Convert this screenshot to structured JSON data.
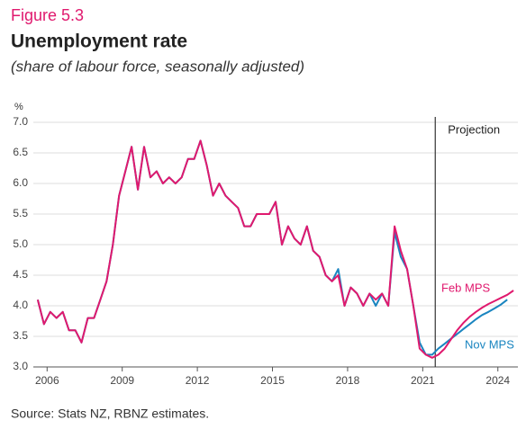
{
  "chart_data": {
    "type": "line",
    "figure_label": "Figure 5.3",
    "title": "Unemployment rate",
    "subtitle": "(share of labour force, seasonally adjusted)",
    "y_unit": "%",
    "source": "Source: Stats NZ, RBNZ estimates.",
    "projection": {
      "x": 2021.5,
      "label": "Projection"
    },
    "x": [
      2005.625,
      2005.875,
      2006.125,
      2006.375,
      2006.625,
      2006.875,
      2007.125,
      2007.375,
      2007.625,
      2007.875,
      2008.125,
      2008.375,
      2008.625,
      2008.875,
      2009.125,
      2009.375,
      2009.625,
      2009.875,
      2010.125,
      2010.375,
      2010.625,
      2010.875,
      2011.125,
      2011.375,
      2011.625,
      2011.875,
      2012.125,
      2012.375,
      2012.625,
      2012.875,
      2013.125,
      2013.375,
      2013.625,
      2013.875,
      2014.125,
      2014.375,
      2014.625,
      2014.875,
      2015.125,
      2015.375,
      2015.625,
      2015.875,
      2016.125,
      2016.375,
      2016.625,
      2016.875,
      2017.125,
      2017.375,
      2017.625,
      2017.875,
      2018.125,
      2018.375,
      2018.625,
      2018.875,
      2019.125,
      2019.375,
      2019.625,
      2019.875,
      2020.125,
      2020.375,
      2020.625,
      2020.875,
      2021.125,
      2021.375,
      2021.625,
      2021.875,
      2022.125,
      2022.375,
      2022.625,
      2022.875,
      2023.125,
      2023.375,
      2023.625,
      2023.875,
      2024.125,
      2024.375,
      2024.625
    ],
    "series": [
      {
        "name": "Nov MPS",
        "color": "#1a85c0",
        "values": [
          4.1,
          3.7,
          3.9,
          3.8,
          3.9,
          3.6,
          3.6,
          3.4,
          3.8,
          3.8,
          4.1,
          4.4,
          5.0,
          5.8,
          6.2,
          6.6,
          5.9,
          6.6,
          6.1,
          6.2,
          6.0,
          6.1,
          6.0,
          6.1,
          6.4,
          6.4,
          6.7,
          6.3,
          5.8,
          6.0,
          5.8,
          5.7,
          5.6,
          5.3,
          5.3,
          5.5,
          5.5,
          5.5,
          5.7,
          5.0,
          5.3,
          5.1,
          5.0,
          5.3,
          4.9,
          4.8,
          4.5,
          4.4,
          4.6,
          4.0,
          4.3,
          4.2,
          4.0,
          4.2,
          4.0,
          4.2,
          4.0,
          5.2,
          4.8,
          4.6,
          4.0,
          3.4,
          3.2,
          3.2,
          3.3,
          3.38,
          3.46,
          3.54,
          3.62,
          3.7,
          3.78,
          3.85,
          3.9,
          3.96,
          4.02,
          4.1,
          null
        ]
      },
      {
        "name": "Feb MPS",
        "color": "#e0196e",
        "values": [
          4.1,
          3.7,
          3.9,
          3.8,
          3.9,
          3.6,
          3.6,
          3.4,
          3.8,
          3.8,
          4.1,
          4.4,
          5.0,
          5.8,
          6.2,
          6.6,
          5.9,
          6.6,
          6.1,
          6.2,
          6.0,
          6.1,
          6.0,
          6.1,
          6.4,
          6.4,
          6.7,
          6.3,
          5.8,
          6.0,
          5.8,
          5.7,
          5.6,
          5.3,
          5.3,
          5.5,
          5.5,
          5.5,
          5.7,
          5.0,
          5.3,
          5.1,
          5.0,
          5.3,
          4.9,
          4.8,
          4.5,
          4.4,
          4.5,
          4.0,
          4.3,
          4.2,
          4.0,
          4.2,
          4.1,
          4.2,
          4.0,
          5.3,
          4.9,
          4.6,
          4.0,
          3.3,
          3.2,
          3.15,
          3.2,
          3.3,
          3.45,
          3.6,
          3.72,
          3.82,
          3.9,
          3.97,
          4.03,
          4.08,
          4.13,
          4.18,
          4.25
        ]
      }
    ],
    "xlim": [
      2005.45,
      2024.8
    ],
    "xticks": [
      2006,
      2009,
      2012,
      2015,
      2018,
      2021,
      2024
    ],
    "ylim": [
      3,
      7
    ],
    "yticks": [
      {
        "value": 3,
        "label": "3.0"
      },
      {
        "value": 3.5,
        "label": "3.5"
      },
      {
        "value": 4,
        "label": "4.0"
      },
      {
        "value": 4.5,
        "label": "4.5"
      },
      {
        "value": 5,
        "label": "5.0"
      },
      {
        "value": 5.5,
        "label": "5.5"
      },
      {
        "value": 6,
        "label": "6.0"
      },
      {
        "value": 6.5,
        "label": "6.5"
      },
      {
        "value": 7,
        "label": "7.0"
      }
    ],
    "grid": true
  }
}
